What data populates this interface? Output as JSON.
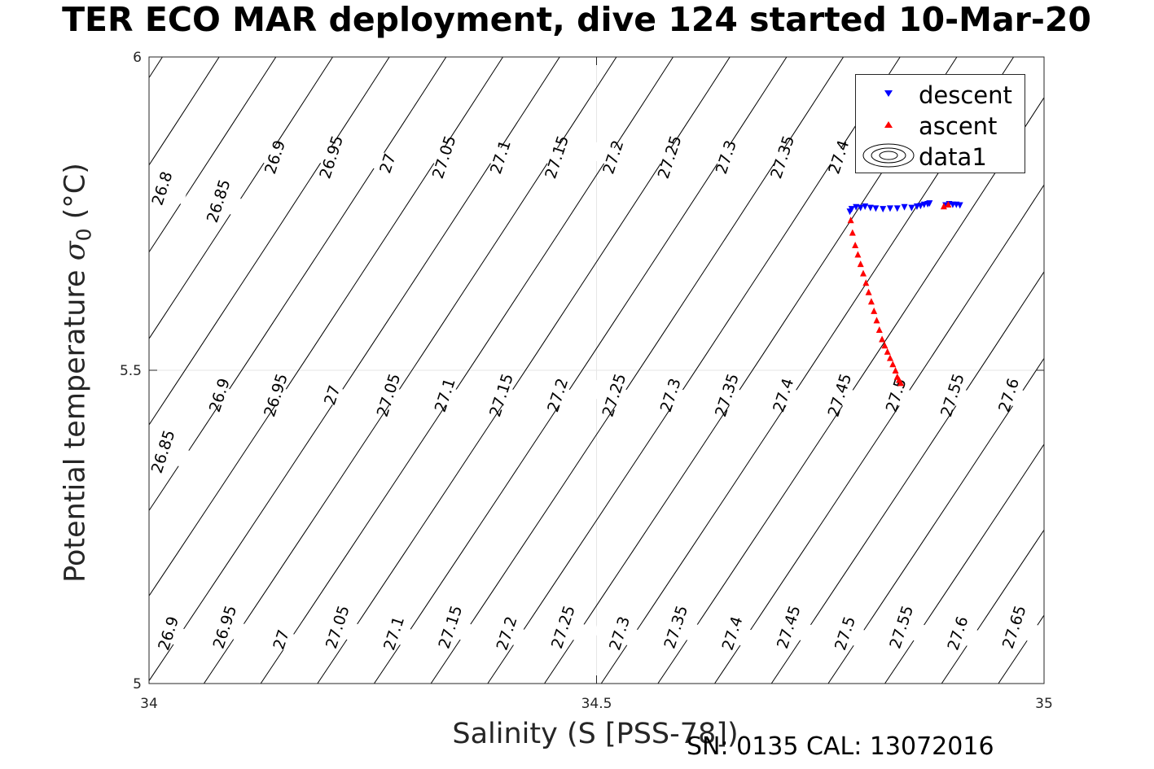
{
  "title": "TER ECO MAR deployment, dive 124 started 10-Mar-20",
  "footer": "SN: 0135  CAL: 13072016",
  "axes": {
    "xlabel": "Salinity (S [PSS-78])",
    "ylabel_main": "Potential temperature ",
    "ylabel_symbol": "σ",
    "ylabel_subscript": "0",
    "ylabel_units": " (°C)"
  },
  "legend": {
    "position": "top-right",
    "entries": [
      {
        "label": "descent",
        "marker": "triangle-down",
        "color": "#0000ff"
      },
      {
        "label": "ascent",
        "marker": "triangle-up",
        "color": "#ff0000"
      },
      {
        "label": "data1",
        "marker": "contour",
        "color": "#000000"
      }
    ]
  },
  "chart_data": {
    "type": "scatter",
    "xlim": [
      34,
      35
    ],
    "ylim": [
      5,
      6
    ],
    "xticks": [
      34,
      34.5,
      35
    ],
    "yticks": [
      5,
      5.5,
      6
    ],
    "grid": true,
    "contours": {
      "levels": [
        26.8,
        26.85,
        26.9,
        26.95,
        27,
        27.05,
        27.1,
        27.15,
        27.2,
        27.25,
        27.3,
        27.35,
        27.4,
        27.45,
        27.5,
        27.55,
        27.6,
        27.65
      ],
      "labels": [
        {
          "text": "26.8",
          "x": 34.015,
          "y": 5.79
        },
        {
          "text": "26.85",
          "x": 34.078,
          "y": 5.77
        },
        {
          "text": "26.9",
          "x": 34.141,
          "y": 5.84
        },
        {
          "text": "26.95",
          "x": 34.204,
          "y": 5.84
        },
        {
          "text": "27",
          "x": 34.267,
          "y": 5.83
        },
        {
          "text": "27.05",
          "x": 34.33,
          "y": 5.84
        },
        {
          "text": "27.1",
          "x": 34.393,
          "y": 5.84
        },
        {
          "text": "27.15",
          "x": 34.456,
          "y": 5.84
        },
        {
          "text": "27.2",
          "x": 34.519,
          "y": 5.84
        },
        {
          "text": "27.25",
          "x": 34.582,
          "y": 5.84
        },
        {
          "text": "27.3",
          "x": 34.645,
          "y": 5.84
        },
        {
          "text": "27.35",
          "x": 34.708,
          "y": 5.84
        },
        {
          "text": "27.4",
          "x": 34.771,
          "y": 5.84
        },
        {
          "text": "26.85",
          "x": 34.016,
          "y": 5.37
        },
        {
          "text": "26.9",
          "x": 34.079,
          "y": 5.46
        },
        {
          "text": "26.95",
          "x": 34.142,
          "y": 5.46
        },
        {
          "text": "27",
          "x": 34.205,
          "y": 5.46
        },
        {
          "text": "27.05",
          "x": 34.268,
          "y": 5.46
        },
        {
          "text": "27.1",
          "x": 34.331,
          "y": 5.46
        },
        {
          "text": "27.15",
          "x": 34.394,
          "y": 5.46
        },
        {
          "text": "27.2",
          "x": 34.457,
          "y": 5.46
        },
        {
          "text": "27.25",
          "x": 34.52,
          "y": 5.46
        },
        {
          "text": "27.3",
          "x": 34.583,
          "y": 5.46
        },
        {
          "text": "27.35",
          "x": 34.646,
          "y": 5.46
        },
        {
          "text": "27.4",
          "x": 34.709,
          "y": 5.46
        },
        {
          "text": "27.45",
          "x": 34.772,
          "y": 5.46
        },
        {
          "text": "27.5",
          "x": 34.835,
          "y": 5.46
        },
        {
          "text": "27.55",
          "x": 34.898,
          "y": 5.46
        },
        {
          "text": "27.6",
          "x": 34.961,
          "y": 5.46
        },
        {
          "text": "26.9",
          "x": 34.022,
          "y": 5.08
        },
        {
          "text": "26.95",
          "x": 34.085,
          "y": 5.09
        },
        {
          "text": "27",
          "x": 34.148,
          "y": 5.07
        },
        {
          "text": "27.05",
          "x": 34.211,
          "y": 5.09
        },
        {
          "text": "27.1",
          "x": 34.274,
          "y": 5.08
        },
        {
          "text": "27.15",
          "x": 34.337,
          "y": 5.09
        },
        {
          "text": "27.2",
          "x": 34.4,
          "y": 5.08
        },
        {
          "text": "27.25",
          "x": 34.463,
          "y": 5.09
        },
        {
          "text": "27.3",
          "x": 34.526,
          "y": 5.08
        },
        {
          "text": "27.35",
          "x": 34.589,
          "y": 5.09
        },
        {
          "text": "27.4",
          "x": 34.652,
          "y": 5.08
        },
        {
          "text": "27.45",
          "x": 34.715,
          "y": 5.09
        },
        {
          "text": "27.5",
          "x": 34.778,
          "y": 5.08
        },
        {
          "text": "27.55",
          "x": 34.841,
          "y": 5.09
        },
        {
          "text": "27.6",
          "x": 34.904,
          "y": 5.08
        },
        {
          "text": "27.65",
          "x": 34.967,
          "y": 5.09
        }
      ]
    },
    "series": [
      {
        "name": "descent",
        "marker": "triangle-down",
        "color": "#0000ff",
        "x": [
          34.783,
          34.785,
          34.79,
          34.795,
          34.8,
          34.806,
          34.812,
          34.82,
          34.828,
          34.836,
          34.844,
          34.852,
          34.858,
          34.862,
          34.866,
          34.87,
          34.872,
          34.89,
          34.894,
          34.898,
          34.902,
          34.906
        ],
        "y": [
          5.753,
          5.757,
          5.76,
          5.759,
          5.761,
          5.759,
          5.758,
          5.757,
          5.758,
          5.758,
          5.76,
          5.759,
          5.761,
          5.762,
          5.764,
          5.765,
          5.766,
          5.763,
          5.765,
          5.764,
          5.764,
          5.763
        ]
      },
      {
        "name": "ascent",
        "marker": "triangle-up",
        "color": "#ff0000",
        "x": [
          34.784,
          34.786,
          34.789,
          34.792,
          34.795,
          34.798,
          34.801,
          34.804,
          34.807,
          34.81,
          34.813,
          34.816,
          34.819,
          34.822,
          34.825,
          34.828,
          34.831,
          34.834,
          34.836,
          34.838,
          34.84,
          34.888,
          34.893
        ],
        "y": [
          5.74,
          5.72,
          5.7,
          5.685,
          5.67,
          5.655,
          5.64,
          5.625,
          5.61,
          5.595,
          5.58,
          5.565,
          5.55,
          5.54,
          5.53,
          5.52,
          5.51,
          5.5,
          5.49,
          5.485,
          5.48,
          5.762,
          5.765
        ]
      }
    ]
  }
}
